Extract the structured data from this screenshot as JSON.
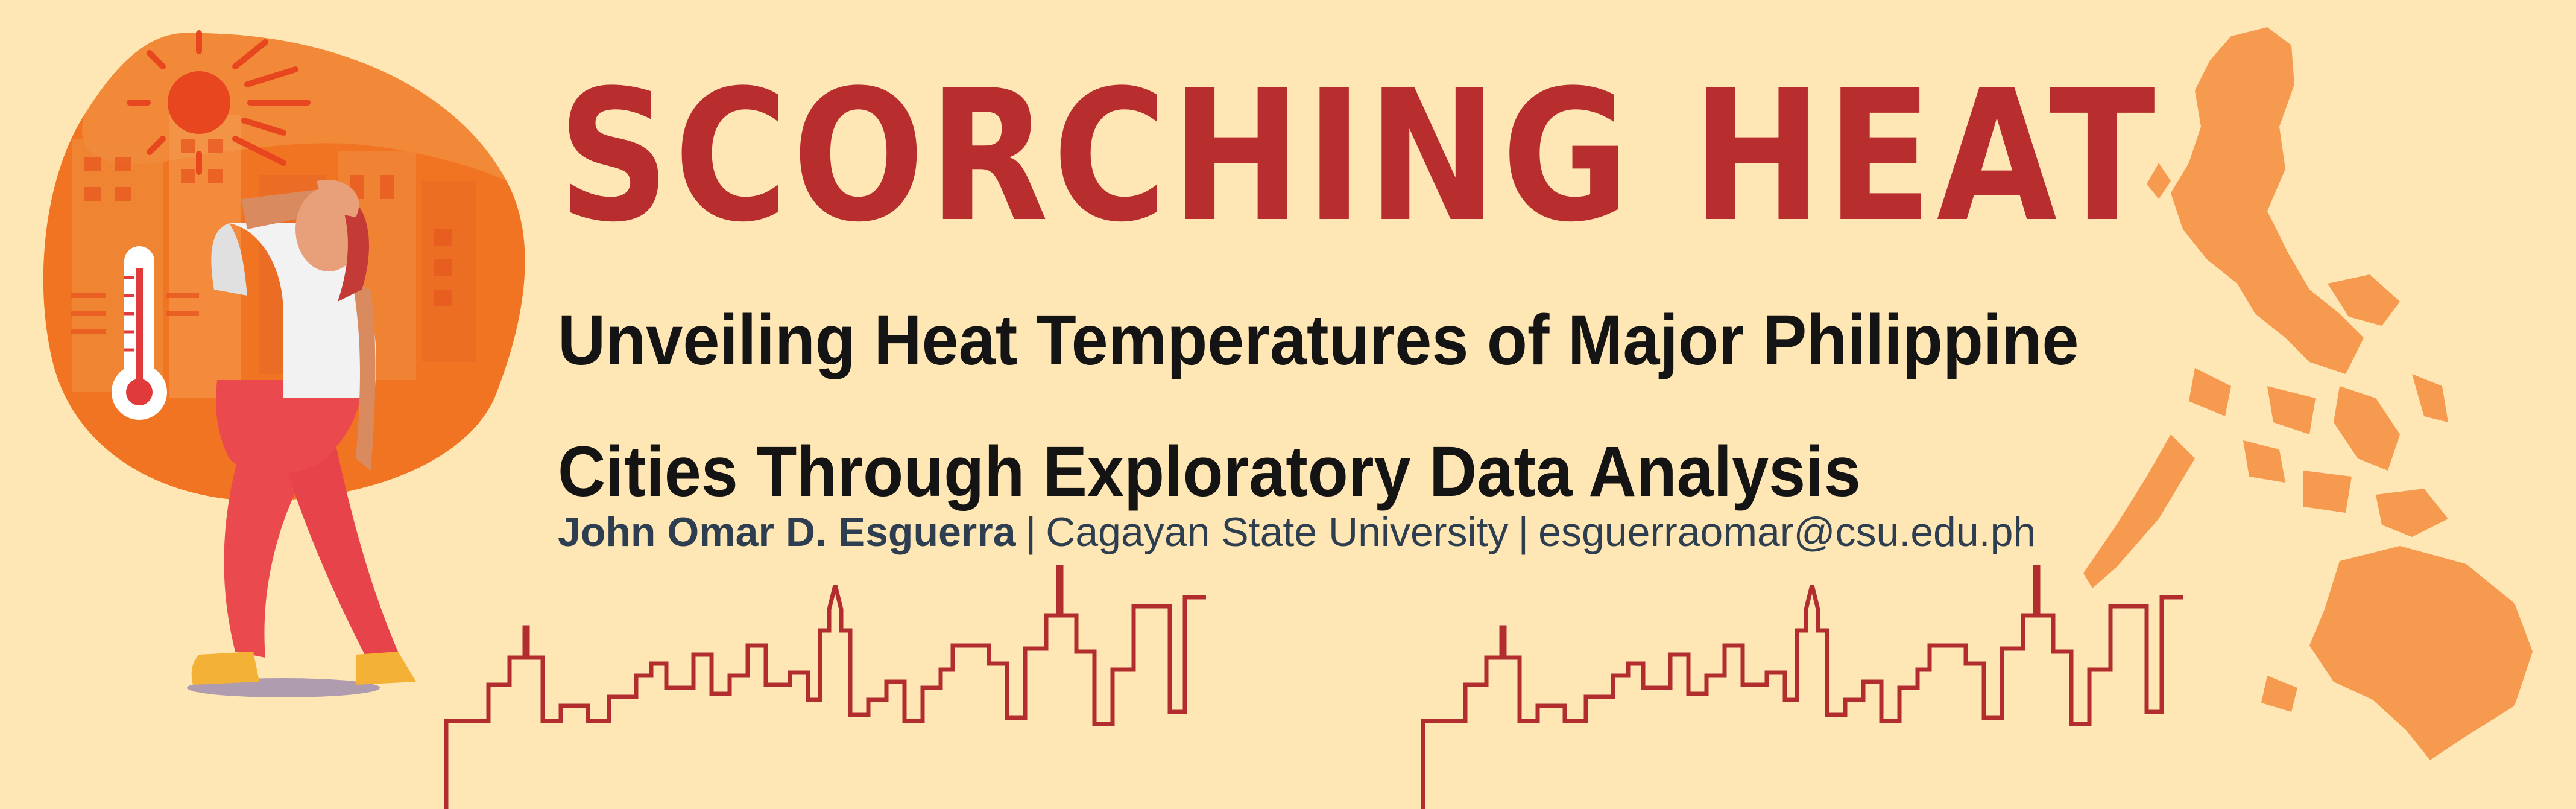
{
  "banner": {
    "title": "SCORCHING HEAT",
    "subtitle_line1": "Unveiling Heat Temperatures of Major Philippine",
    "subtitle_line2": "Cities Through Exploratory Data Analysis",
    "author": "John Omar D. Esguerra",
    "separator": "|",
    "institution": "Cagayan State University",
    "email": "esguerraomar@csu.edu.ph"
  },
  "colors": {
    "background": "#FFE6B5",
    "title": "#B82E2E",
    "map": "#F59A4F",
    "skyline": "#B22E2E",
    "blob": "#F07422"
  },
  "icons": [
    "sun-icon",
    "thermometer-icon",
    "philippines-map-icon"
  ]
}
